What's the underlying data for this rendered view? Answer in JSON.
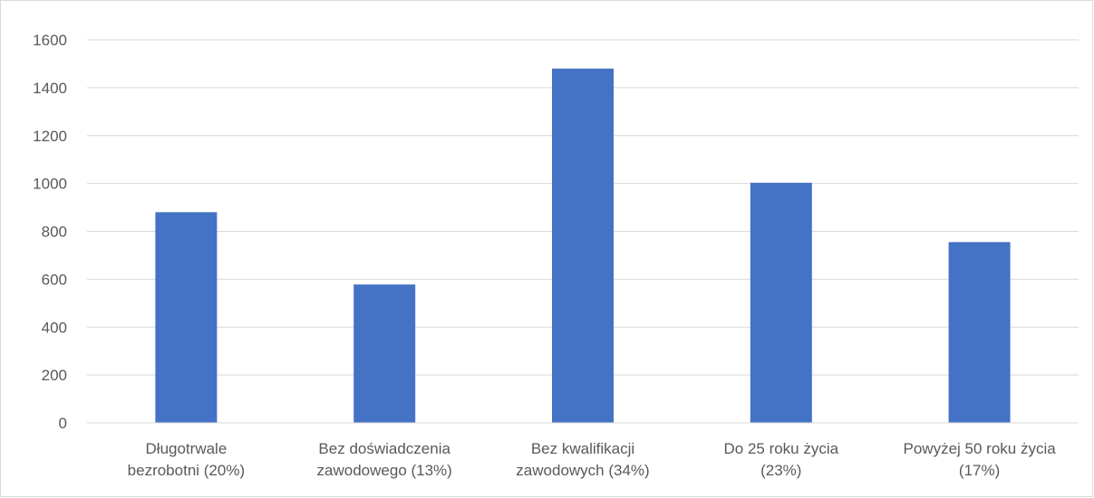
{
  "chart_data": {
    "type": "bar",
    "title": "",
    "xlabel": "",
    "ylabel": "",
    "categories": [
      [
        "Długotrwale",
        "bezrobotni (20%)"
      ],
      [
        "Bez doświadczenia",
        "zawodowego (13%)"
      ],
      [
        "Bez kwalifikacji",
        "zawodowych (34%)"
      ],
      [
        "Do 25 roku życia",
        "(23%)"
      ],
      [
        "Powyżej 50 roku życia",
        "(17%)"
      ]
    ],
    "values": [
      880,
      578,
      1480,
      1003,
      755
    ],
    "ylim": [
      0,
      1600
    ],
    "yticks": [
      "0",
      "200",
      "400",
      "600",
      "800",
      "1000",
      "1200",
      "1400",
      "1600"
    ],
    "grid": true,
    "legend": "none",
    "colors": {
      "bar": "#4472C4",
      "grid": "#d9d9d9",
      "text": "#595959"
    }
  }
}
